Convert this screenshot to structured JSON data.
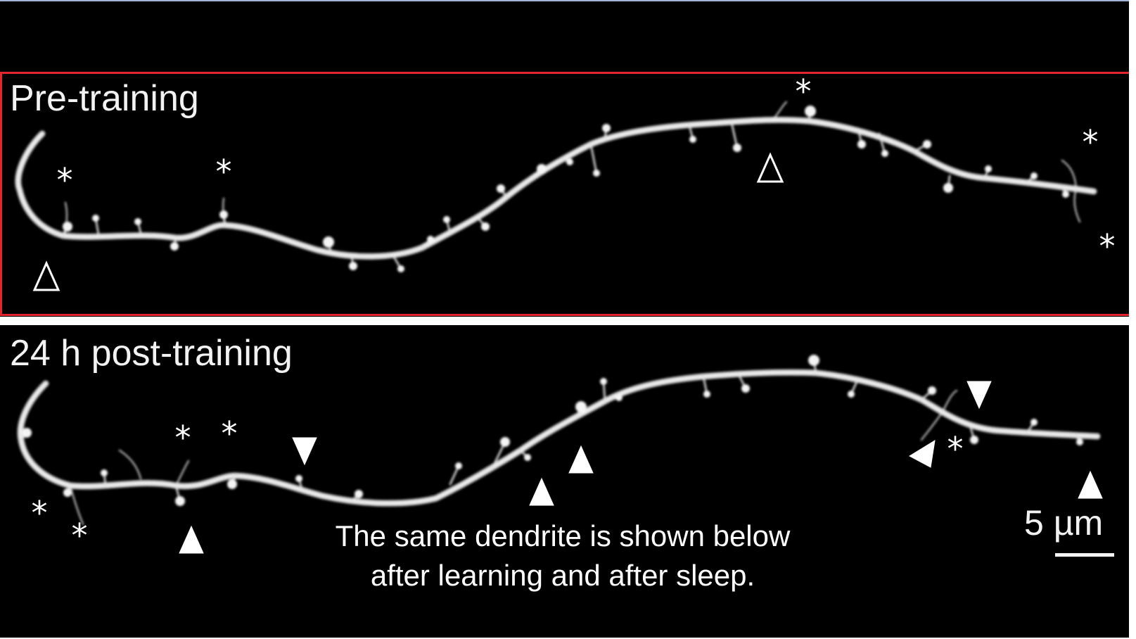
{
  "figure": {
    "panels": [
      {
        "label": "Pre-training",
        "border_color": "#e3262c"
      },
      {
        "label": "24 h post-training"
      }
    ],
    "caption_lines": [
      "The same dendrite is shown below",
      "after learning and after sleep."
    ],
    "scale_bar_label": "5 µm",
    "marker_symbols": {
      "asterisk": "*",
      "arrowhead": "▼",
      "open_arrowhead": "Δ"
    },
    "colors": {
      "background": "#000000",
      "dendrite": "#e6e6e6",
      "highlight_border": "#e3262c"
    }
  }
}
